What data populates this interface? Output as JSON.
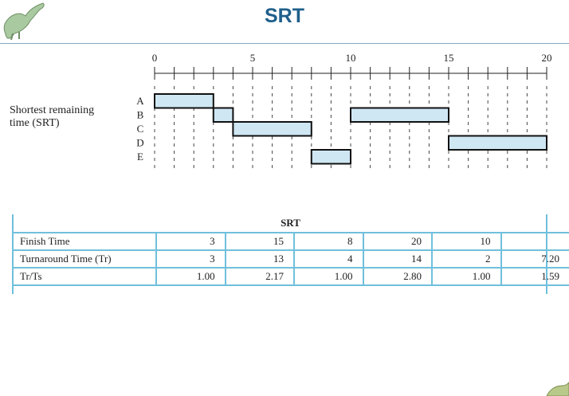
{
  "slide": {
    "title": "SRT"
  },
  "diagram": {
    "policy_label_line1": "Shortest remaining",
    "policy_label_line2": "time (SRT)",
    "processes": [
      "A",
      "B",
      "C",
      "D",
      "E"
    ],
    "axis": {
      "min": 0,
      "max": 20,
      "tick_labels": [
        0,
        5,
        10,
        15,
        20
      ]
    },
    "bars": [
      {
        "process": "A",
        "start": 0,
        "end": 3
      },
      {
        "process": "B",
        "start": 3,
        "end": 4
      },
      {
        "process": "C",
        "start": 4,
        "end": 8
      },
      {
        "process": "E",
        "start": 8,
        "end": 10
      },
      {
        "process": "B",
        "start": 10,
        "end": 15
      },
      {
        "process": "D",
        "start": 15,
        "end": 20
      }
    ]
  },
  "table": {
    "caption": "SRT",
    "rows": [
      {
        "label": "Finish Time",
        "cells": [
          "3",
          "15",
          "8",
          "20",
          "10",
          ""
        ]
      },
      {
        "label": "Turnaround Time (Tr)",
        "cells": [
          "3",
          "13",
          "4",
          "14",
          "2",
          "7.20"
        ]
      },
      {
        "label": "Tr/Ts",
        "cells": [
          "1.00",
          "2.17",
          "1.00",
          "2.80",
          "1.00",
          "1.59"
        ]
      }
    ]
  },
  "colors": {
    "title": "#1f5f8b",
    "bar_fill": "#cfe7f3",
    "table_rule": "#6fc0dc"
  },
  "icons": [
    "dinosaur-logo-icon",
    "dinosaur-logo-corner-icon"
  ]
}
